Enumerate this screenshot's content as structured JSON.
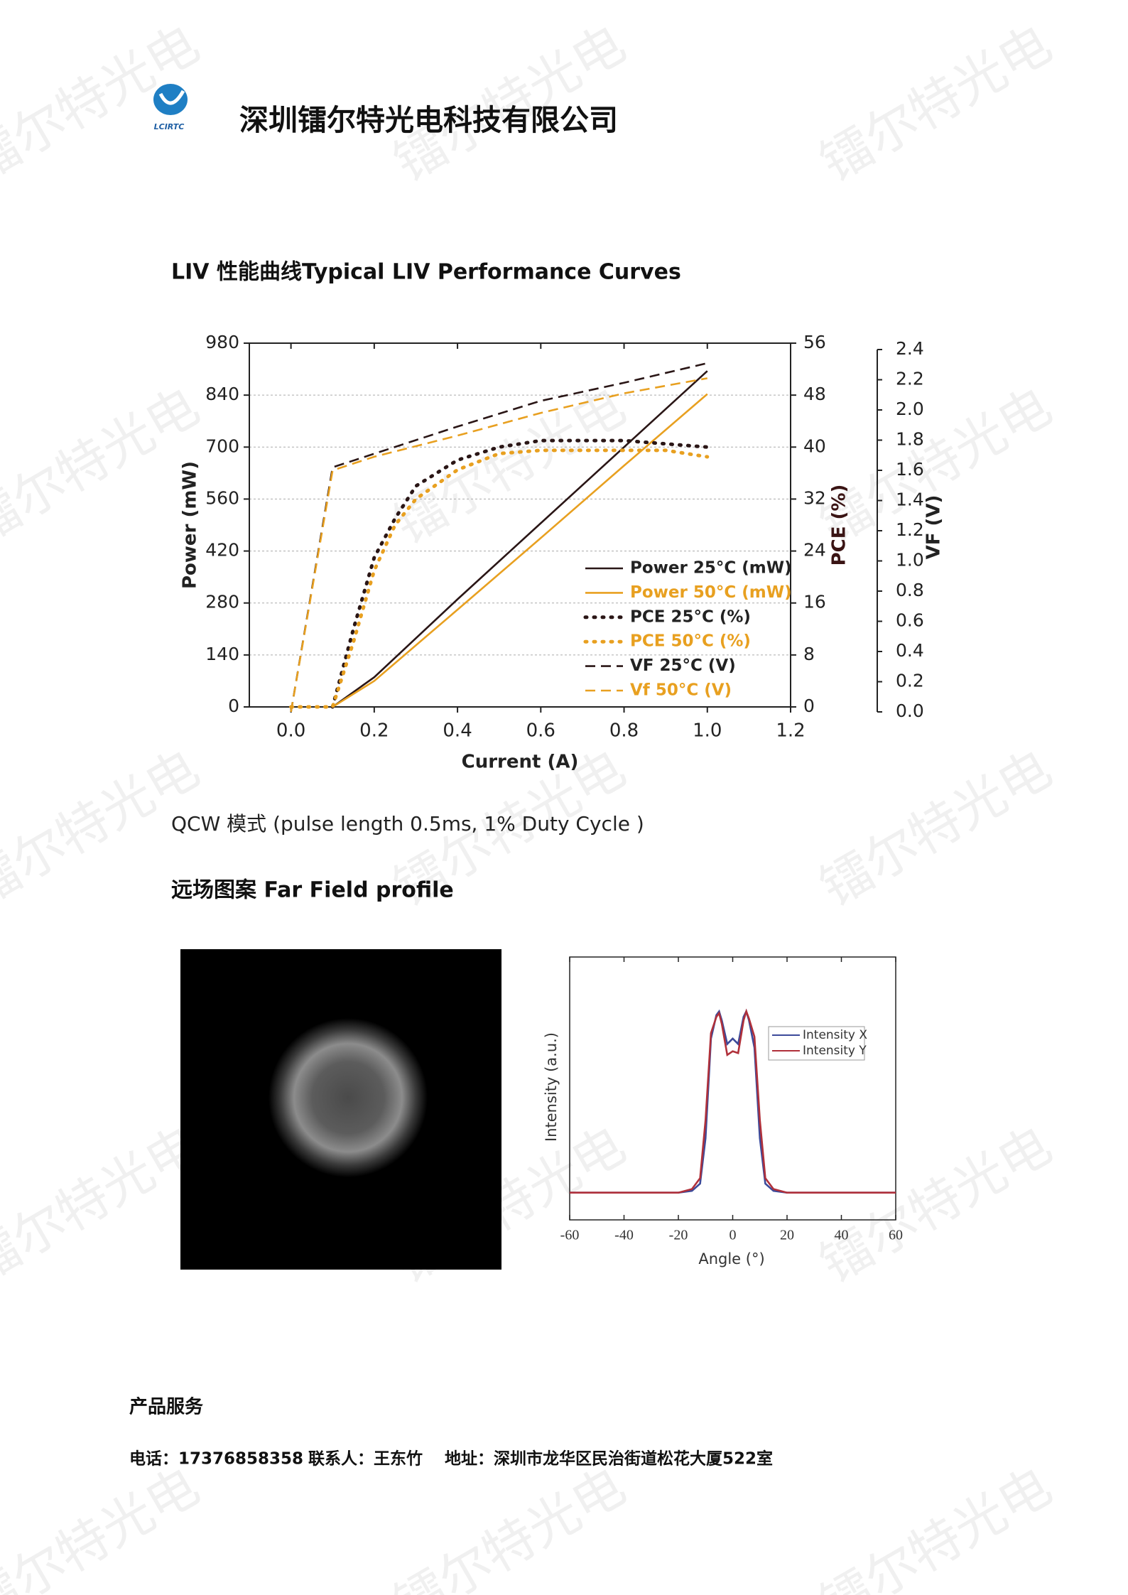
{
  "header": {
    "logo_text": "LCIRTC",
    "company": "深圳镭尔特光电科技有限公司"
  },
  "watermark": "镭尔特光电",
  "liv_heading": "LIV 性能曲线Typical LIV Performance Curves",
  "qcw_note": "QCW 模式 (pulse length 0.5ms, 1% Duty Cycle )",
  "far_field_heading": "远场图案 Far Field profile",
  "footer": {
    "title": "产品服务",
    "phone": "电话：17376858358",
    "contact": "联系人：王东竹",
    "address": "地址：深圳市龙华区民治街道松花大厦522室"
  },
  "chart_data": [
    {
      "type": "line",
      "xlabel": "Current (A)",
      "ylabel": "Power (mW)",
      "y2label": "PCE (%)",
      "y3label": "VF (V)",
      "xlim": [
        -0.1,
        1.2
      ],
      "xticks": [
        {
          "value": 0,
          "label": "0.0"
        },
        0.2,
        0.4,
        0.6,
        0.8,
        {
          "value": 1,
          "label": "1.0"
        },
        1.2
      ],
      "ylim": [
        0,
        980
      ],
      "yticks": [
        0,
        140,
        280,
        420,
        560,
        700,
        840,
        980
      ],
      "y2lim": [
        0,
        56
      ],
      "y2ticks": [
        0,
        8,
        16,
        24,
        32,
        40,
        48,
        56
      ],
      "y3lim": [
        0,
        2.4
      ],
      "y3ticks": [
        {
          "value": 0,
          "label": "0.0"
        },
        0.2,
        0.4,
        0.6,
        0.8,
        {
          "value": 1,
          "label": "1.0"
        },
        1.2,
        1.4,
        1.6,
        1.8,
        {
          "value": 2,
          "label": "2.0"
        },
        2.2,
        2.4
      ],
      "grid": true,
      "series": [
        {
          "name": "Power 25°C (mW)",
          "color": "#2a1616",
          "style": "solid",
          "x": [
            0.1,
            0.2,
            0.4,
            0.6,
            0.8,
            1.0
          ],
          "values": [
            0,
            80,
            290,
            495,
            700,
            905
          ]
        },
        {
          "name": "Power 50°C (mW)",
          "color": "#e8a020",
          "style": "solid",
          "x": [
            0.1,
            0.2,
            0.4,
            0.6,
            0.8,
            1.0
          ],
          "values": [
            0,
            70,
            262,
            455,
            650,
            843
          ]
        },
        {
          "name": "PCE 25°C (%)",
          "color": "#2a1616",
          "style": "dotted",
          "axis": "y2",
          "x": [
            0.1,
            0.15,
            0.2,
            0.25,
            0.3,
            0.4,
            0.5,
            0.6,
            0.7,
            0.8,
            0.9,
            1.0
          ],
          "values": [
            0,
            12,
            23,
            29,
            34,
            38,
            40,
            41,
            41,
            41,
            40.5,
            40
          ]
        },
        {
          "name": "PCE 50°C (%)",
          "color": "#e8a020",
          "style": "dotted",
          "axis": "y2",
          "x": [
            0.0,
            0.1,
            0.15,
            0.2,
            0.25,
            0.3,
            0.4,
            0.5,
            0.6,
            0.7,
            0.8,
            0.9,
            1.0
          ],
          "values": [
            0,
            0,
            10,
            21,
            28,
            32,
            36.5,
            39,
            39.5,
            39.5,
            39.5,
            39.5,
            38.5
          ]
        },
        {
          "name": "VF 25°C (V)",
          "color": "#2a1616",
          "style": "dashed",
          "axis": "y3",
          "x": [
            0.0,
            0.1,
            0.2,
            0.3,
            0.4,
            0.6,
            0.8,
            1.0
          ],
          "values": [
            0,
            1.62,
            1.71,
            1.8,
            1.89,
            2.06,
            2.18,
            2.31
          ]
        },
        {
          "name": "Vf 50°C (V)",
          "color": "#e8a020",
          "style": "dashed",
          "axis": "y3",
          "x": [
            0.0,
            0.1,
            0.2,
            0.3,
            0.4,
            0.6,
            0.8,
            1.0
          ],
          "values": [
            0,
            1.6,
            1.69,
            1.76,
            1.83,
            1.98,
            2.11,
            2.21
          ]
        }
      ]
    },
    {
      "type": "line",
      "xlabel": "Angle (°)",
      "ylabel": "Intensity (a.u.)",
      "xlim": [
        -60,
        60
      ],
      "xticks": [
        -60,
        -40,
        -20,
        0,
        20,
        40,
        60
      ],
      "ylim": [
        -0.15,
        1.3
      ],
      "x": [
        -60,
        -20,
        -15,
        -12,
        -10,
        -8,
        -6,
        -5,
        -4,
        -2,
        0,
        2,
        4,
        5,
        6,
        8,
        10,
        12,
        15,
        20,
        60
      ],
      "series": [
        {
          "name": "Intensity X",
          "color": "#3c4a9a",
          "values": [
            0,
            0,
            0.01,
            0.05,
            0.3,
            0.85,
            0.98,
            1.0,
            0.95,
            0.82,
            0.85,
            0.82,
            0.97,
            1.0,
            0.95,
            0.8,
            0.3,
            0.05,
            0.01,
            0,
            0
          ]
        },
        {
          "name": "Intensity Y",
          "color": "#b0303a",
          "values": [
            0,
            0,
            0.02,
            0.08,
            0.4,
            0.88,
            0.97,
            0.99,
            0.93,
            0.76,
            0.78,
            0.77,
            0.95,
            1.0,
            0.96,
            0.86,
            0.4,
            0.08,
            0.02,
            0,
            0
          ]
        }
      ]
    }
  ]
}
